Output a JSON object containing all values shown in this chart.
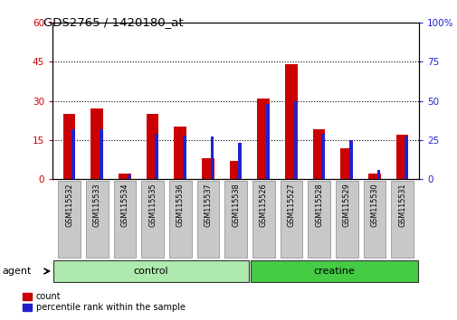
{
  "title": "GDS2765 / 1420180_at",
  "samples": [
    "GSM115532",
    "GSM115533",
    "GSM115534",
    "GSM115535",
    "GSM115536",
    "GSM115537",
    "GSM115538",
    "GSM115526",
    "GSM115527",
    "GSM115528",
    "GSM115529",
    "GSM115530",
    "GSM115531"
  ],
  "count_values": [
    25,
    27,
    2,
    25,
    20,
    8,
    7,
    31,
    44,
    19,
    12,
    2,
    17
  ],
  "percentile_values": [
    32,
    32,
    3,
    29,
    28,
    27,
    23,
    48,
    50,
    29,
    25,
    6,
    27
  ],
  "groups": [
    {
      "label": "control",
      "start": 0,
      "end": 7,
      "color": "#AEEAAE"
    },
    {
      "label": "creatine",
      "start": 7,
      "end": 13,
      "color": "#44CC44"
    }
  ],
  "bar_color_red": "#CC0000",
  "bar_color_blue": "#2222CC",
  "left_ylim": [
    0,
    60
  ],
  "right_ylim": [
    0,
    100
  ],
  "left_yticks": [
    0,
    15,
    30,
    45,
    60
  ],
  "right_yticks": [
    0,
    25,
    50,
    75,
    100
  ],
  "dotted_lines": [
    15,
    30,
    45
  ],
  "agent_label": "agent",
  "legend_count_label": "count",
  "legend_percentile_label": "percentile rank within the sample",
  "left_tick_color": "#CC0000",
  "right_tick_color": "#2222CC",
  "tick_label_bg": "#C8C8C8"
}
